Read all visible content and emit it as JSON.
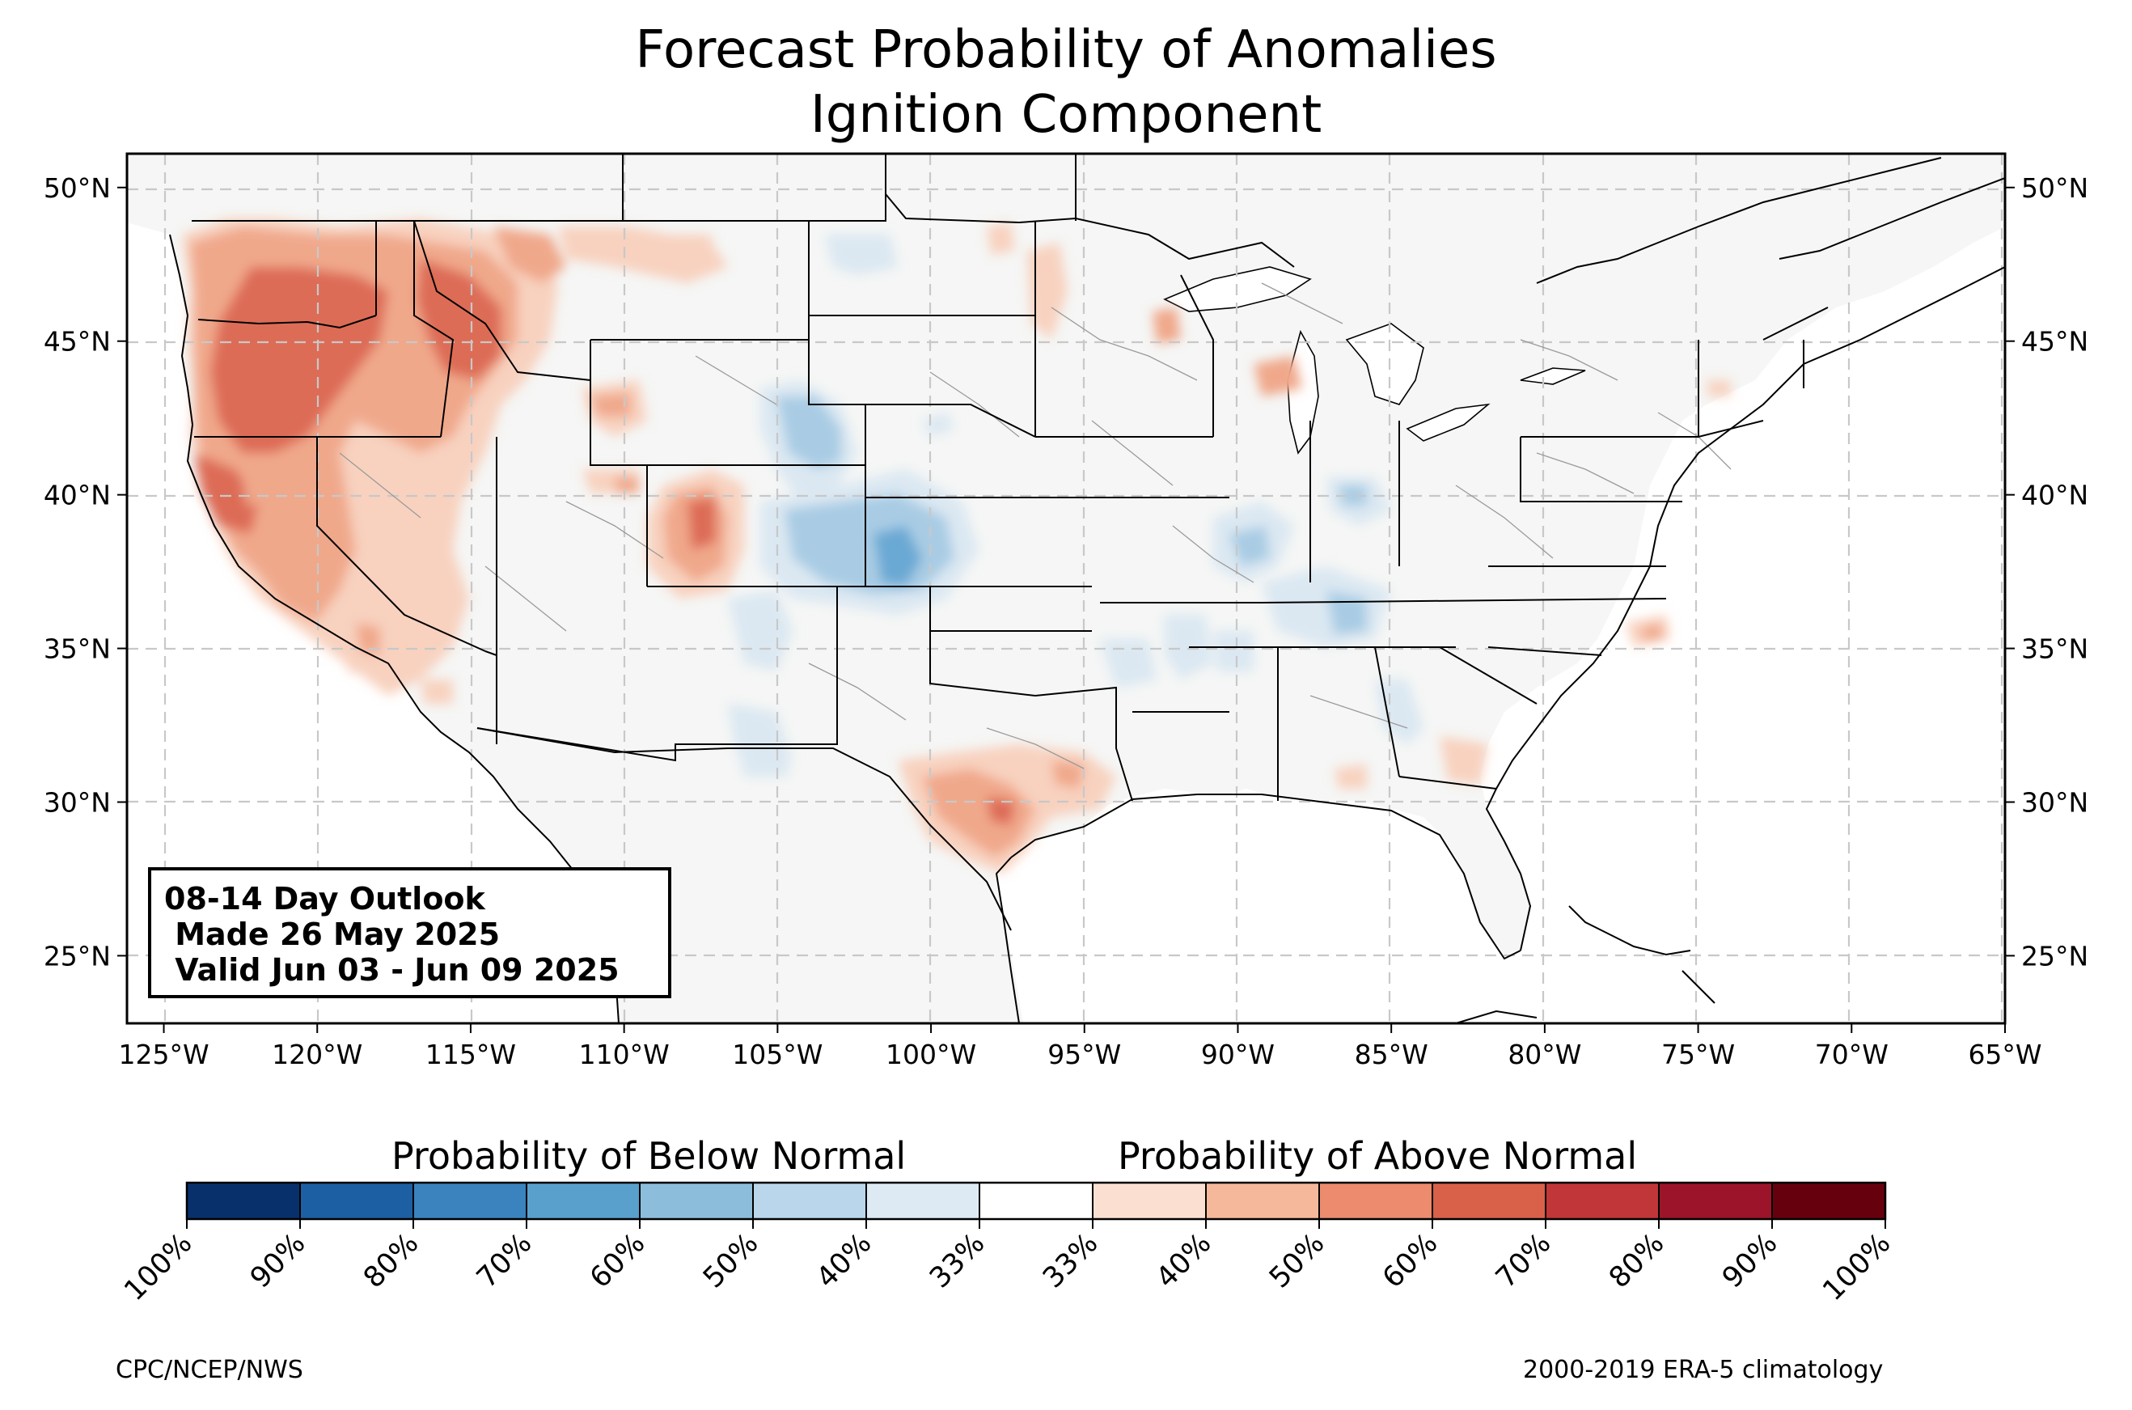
{
  "title_line1": "Forecast Probability of Anomalies",
  "title_line2": "Ignition Component",
  "outlook": {
    "line1": "08-14 Day Outlook",
    "line2": " Made 26 May 2025",
    "line3": " Valid Jun 03 - Jun 09 2025"
  },
  "axes": {
    "lon_labels": [
      "125°W",
      "120°W",
      "115°W",
      "110°W",
      "105°W",
      "100°W",
      "95°W",
      "90°W",
      "85°W",
      "80°W",
      "75°W",
      "70°W",
      "65°W"
    ],
    "lat_labels": [
      "50°N",
      "45°N",
      "40°N",
      "35°N",
      "30°N",
      "25°N"
    ],
    "lon_range": [
      -126.2,
      -65
    ],
    "lat_range": [
      22.8,
      51.1
    ]
  },
  "legend": {
    "below_label": "Probability of Below Normal",
    "above_label": "Probability of Above Normal",
    "tick_labels": [
      "100%",
      "90%",
      "80%",
      "70%",
      "60%",
      "50%",
      "40%",
      "33%",
      "33%",
      "40%",
      "50%",
      "60%",
      "70%",
      "80%",
      "90%",
      "100%"
    ],
    "colors": [
      "#08306b",
      "#1d5fa3",
      "#3a83be",
      "#5aa0cd",
      "#8cbedc",
      "#b9d6ea",
      "#ddeaf4",
      "#ffffff",
      "#fbe0d2",
      "#f6b89b",
      "#ec8b6d",
      "#d9614a",
      "#c13638",
      "#9c1429",
      "#67000d"
    ]
  },
  "credits": {
    "left": "CPC/NCEP/NWS",
    "right": "2000-2019 ERA-5 climatology"
  },
  "map_colors": {
    "land": "#f5f6f5",
    "above_40": "#f8d2bf",
    "above_50": "#f0a88b",
    "above_60": "#dd6c57",
    "below_40": "#dbe8f2",
    "below_50": "#a9cce4",
    "below_60": "#6aa9d4"
  }
}
